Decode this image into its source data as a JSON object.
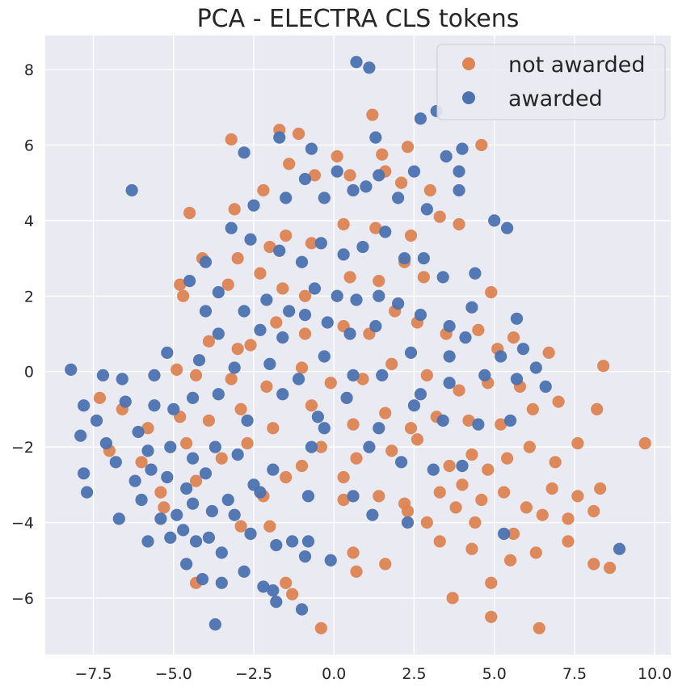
{
  "chart_data": {
    "type": "scatter",
    "title": "PCA - ELECTRA CLS tokens",
    "xlabel": "",
    "ylabel": "",
    "xlim": [
      -9.0,
      10.5
    ],
    "ylim": [
      -7.5,
      8.9
    ],
    "x_ticks": [
      -7.5,
      -5.0,
      -2.5,
      0.0,
      2.5,
      5.0,
      7.5,
      10.0
    ],
    "x_tick_labels": [
      "−7.5",
      "−5.0",
      "−2.5",
      "0.0",
      "2.5",
      "5.0",
      "7.5",
      "10.0"
    ],
    "y_ticks": [
      -6,
      -4,
      -2,
      0,
      2,
      4,
      6,
      8
    ],
    "y_tick_labels": [
      "−6",
      "−4",
      "−2",
      "0",
      "2",
      "4",
      "6",
      "8"
    ],
    "grid": true,
    "legend_position": "top-right",
    "series": [
      {
        "name": "not awarded",
        "color": "#dd8452",
        "points": [
          [
            -3.2,
            6.15
          ],
          [
            -1.7,
            6.4
          ],
          [
            -1.1,
            6.3
          ],
          [
            0.1,
            5.7
          ],
          [
            1.2,
            6.8
          ],
          [
            1.5,
            5.75
          ],
          [
            2.3,
            5.95
          ],
          [
            4.6,
            6.0
          ],
          [
            -4.5,
            4.2
          ],
          [
            -3.1,
            4.3
          ],
          [
            -2.2,
            4.8
          ],
          [
            -1.4,
            5.5
          ],
          [
            -0.6,
            5.2
          ],
          [
            0.5,
            5.2
          ],
          [
            1.6,
            5.3
          ],
          [
            2.1,
            5.0
          ],
          [
            3.0,
            4.8
          ],
          [
            -4.1,
            3.0
          ],
          [
            -3.0,
            3.0
          ],
          [
            -2.0,
            3.3
          ],
          [
            -1.5,
            3.6
          ],
          [
            -0.7,
            3.4
          ],
          [
            0.3,
            3.9
          ],
          [
            1.3,
            3.8
          ],
          [
            2.4,
            3.6
          ],
          [
            3.3,
            4.1
          ],
          [
            3.9,
            3.9
          ],
          [
            -4.8,
            2.3
          ],
          [
            -4.7,
            2.0
          ],
          [
            -3.3,
            2.3
          ],
          [
            -2.3,
            2.6
          ],
          [
            -1.6,
            2.2
          ],
          [
            -0.9,
            2.0
          ],
          [
            0.5,
            2.5
          ],
          [
            1.4,
            2.4
          ],
          [
            2.2,
            2.9
          ],
          [
            2.8,
            2.5
          ],
          [
            4.9,
            2.1
          ],
          [
            -3.9,
            0.8
          ],
          [
            -3.0,
            0.6
          ],
          [
            -2.6,
            0.7
          ],
          [
            -1.8,
            1.3
          ],
          [
            -0.9,
            1.0
          ],
          [
            0.3,
            1.2
          ],
          [
            1.1,
            1.0
          ],
          [
            1.9,
            1.6
          ],
          [
            2.6,
            1.3
          ],
          [
            3.5,
            1.0
          ],
          [
            4.5,
            1.1
          ],
          [
            5.1,
            0.6
          ],
          [
            5.6,
            0.9
          ],
          [
            -4.9,
            0.05
          ],
          [
            -4.3,
            -0.1
          ],
          [
            -3.2,
            -0.2
          ],
          [
            -2.1,
            -0.4
          ],
          [
            -1.0,
            0.1
          ],
          [
            -0.1,
            -0.3
          ],
          [
            0.9,
            -0.2
          ],
          [
            1.8,
            0.2
          ],
          [
            2.9,
            -0.1
          ],
          [
            3.9,
            -0.5
          ],
          [
            4.8,
            -0.3
          ],
          [
            5.8,
            -0.4
          ],
          [
            6.7,
            0.5
          ],
          [
            8.4,
            0.15
          ],
          [
            -7.3,
            -0.7
          ],
          [
            -6.6,
            -1.0
          ],
          [
            -5.8,
            -1.5
          ],
          [
            -4.8,
            -1.2
          ],
          [
            -3.9,
            -1.3
          ],
          [
            -2.9,
            -1.0
          ],
          [
            -1.9,
            -1.5
          ],
          [
            -0.7,
            -0.9
          ],
          [
            0.6,
            -1.4
          ],
          [
            1.6,
            -1.1
          ],
          [
            2.4,
            -1.5
          ],
          [
            3.2,
            -1.2
          ],
          [
            4.2,
            -1.3
          ],
          [
            5.2,
            -1.4
          ],
          [
            6.2,
            -1.0
          ],
          [
            7.0,
            -0.8
          ],
          [
            8.2,
            -1.0
          ],
          [
            -7.0,
            -2.1
          ],
          [
            -6.0,
            -2.4
          ],
          [
            -4.6,
            -1.9
          ],
          [
            -3.5,
            -2.3
          ],
          [
            -2.7,
            -1.9
          ],
          [
            -1.5,
            -2.8
          ],
          [
            -0.4,
            -2.0
          ],
          [
            0.7,
            -2.3
          ],
          [
            1.8,
            -2.1
          ],
          [
            2.6,
            -1.8
          ],
          [
            3.6,
            -2.5
          ],
          [
            4.3,
            -2.2
          ],
          [
            4.8,
            -2.6
          ],
          [
            5.4,
            -2.3
          ],
          [
            6.1,
            -2.0
          ],
          [
            6.9,
            -2.4
          ],
          [
            7.6,
            -1.9
          ],
          [
            9.7,
            -1.9
          ],
          [
            -5.4,
            -3.2
          ],
          [
            -4.3,
            -2.9
          ],
          [
            -2.2,
            -3.3
          ],
          [
            -1.0,
            -2.5
          ],
          [
            0.3,
            -2.8
          ],
          [
            1.4,
            -3.3
          ],
          [
            2.2,
            -3.5
          ],
          [
            3.3,
            -3.2
          ],
          [
            4.0,
            -3.0
          ],
          [
            4.6,
            -3.4
          ],
          [
            5.3,
            -3.2
          ],
          [
            6.0,
            -3.6
          ],
          [
            6.8,
            -3.1
          ],
          [
            7.6,
            -3.3
          ],
          [
            8.3,
            -3.1
          ],
          [
            -5.3,
            -3.6
          ],
          [
            -2.9,
            -4.1
          ],
          [
            -2.0,
            -4.1
          ],
          [
            0.3,
            -3.4
          ],
          [
            2.3,
            -3.7
          ],
          [
            2.9,
            -4.0
          ],
          [
            3.8,
            -3.6
          ],
          [
            4.4,
            -4.0
          ],
          [
            5.6,
            -4.3
          ],
          [
            6.5,
            -3.8
          ],
          [
            7.3,
            -3.9
          ],
          [
            8.1,
            -3.7
          ],
          [
            0.6,
            -4.8
          ],
          [
            1.6,
            -5.1
          ],
          [
            3.3,
            -4.5
          ],
          [
            4.3,
            -4.7
          ],
          [
            5.5,
            -5.0
          ],
          [
            6.3,
            -4.8
          ],
          [
            7.3,
            -4.5
          ],
          [
            8.1,
            -5.1
          ],
          [
            8.6,
            -5.2
          ],
          [
            -4.3,
            -5.6
          ],
          [
            -1.5,
            -5.6
          ],
          [
            0.7,
            -5.3
          ],
          [
            3.7,
            -6.0
          ],
          [
            4.9,
            -5.6
          ],
          [
            -1.3,
            -5.9
          ],
          [
            -0.4,
            -6.8
          ],
          [
            4.9,
            -6.5
          ],
          [
            6.4,
            -6.8
          ]
        ]
      },
      {
        "name": "awarded",
        "color": "#4c72b0",
        "points": [
          [
            0.7,
            8.2
          ],
          [
            1.1,
            8.05
          ],
          [
            3.2,
            6.9
          ],
          [
            2.7,
            6.7
          ],
          [
            1.3,
            6.2
          ],
          [
            -2.8,
            5.8
          ],
          [
            -1.7,
            6.2
          ],
          [
            -0.7,
            5.9
          ],
          [
            0.1,
            5.3
          ],
          [
            1.4,
            5.2
          ],
          [
            2.5,
            5.3
          ],
          [
            3.5,
            5.7
          ],
          [
            4.0,
            5.9
          ],
          [
            3.9,
            5.3
          ],
          [
            -6.3,
            4.8
          ],
          [
            -2.5,
            4.4
          ],
          [
            -1.5,
            4.6
          ],
          [
            -0.9,
            5.1
          ],
          [
            -0.3,
            4.6
          ],
          [
            0.6,
            4.8
          ],
          [
            1.0,
            4.9
          ],
          [
            2.0,
            4.6
          ],
          [
            2.9,
            4.3
          ],
          [
            3.9,
            4.8
          ],
          [
            5.0,
            4.0
          ],
          [
            5.4,
            3.8
          ],
          [
            -4.0,
            2.9
          ],
          [
            -3.2,
            3.8
          ],
          [
            -2.6,
            3.5
          ],
          [
            -1.7,
            3.2
          ],
          [
            -1.0,
            2.9
          ],
          [
            -0.4,
            3.4
          ],
          [
            0.3,
            3.1
          ],
          [
            0.9,
            3.3
          ],
          [
            1.6,
            3.7
          ],
          [
            2.2,
            3.0
          ],
          [
            2.8,
            3.0
          ],
          [
            3.4,
            2.5
          ],
          [
            4.4,
            2.6
          ],
          [
            -4.5,
            2.4
          ],
          [
            -3.6,
            2.1
          ],
          [
            -2.8,
            1.6
          ],
          [
            -2.1,
            1.9
          ],
          [
            -1.4,
            1.6
          ],
          [
            -0.6,
            2.2
          ],
          [
            0.1,
            2.0
          ],
          [
            0.7,
            1.9
          ],
          [
            1.4,
            2.0
          ],
          [
            2.0,
            1.8
          ],
          [
            2.7,
            1.5
          ],
          [
            3.6,
            1.2
          ],
          [
            4.3,
            1.7
          ],
          [
            5.7,
            1.4
          ],
          [
            -4.0,
            1.6
          ],
          [
            -3.6,
            1.0
          ],
          [
            -2.3,
            1.1
          ],
          [
            -1.6,
            0.9
          ],
          [
            -0.9,
            1.5
          ],
          [
            -0.2,
            1.3
          ],
          [
            0.5,
            1.0
          ],
          [
            1.3,
            1.2
          ],
          [
            2.4,
            0.5
          ],
          [
            3.6,
            0.4
          ],
          [
            4.1,
            0.9
          ],
          [
            5.2,
            0.4
          ],
          [
            5.9,
            0.6
          ],
          [
            6.3,
            0.1
          ],
          [
            -8.2,
            0.05
          ],
          [
            -7.2,
            -0.1
          ],
          [
            -6.6,
            -0.2
          ],
          [
            -5.6,
            -0.1
          ],
          [
            -5.2,
            0.5
          ],
          [
            -4.2,
            0.3
          ],
          [
            -3.1,
            0.1
          ],
          [
            -2.0,
            0.2
          ],
          [
            -1.1,
            -0.2
          ],
          [
            -0.3,
            0.4
          ],
          [
            0.6,
            -0.1
          ],
          [
            1.5,
            -0.1
          ],
          [
            2.7,
            -0.6
          ],
          [
            3.6,
            -0.3
          ],
          [
            4.7,
            -0.1
          ],
          [
            5.7,
            -0.2
          ],
          [
            6.6,
            -0.4
          ],
          [
            -7.8,
            -0.9
          ],
          [
            -7.4,
            -1.3
          ],
          [
            -6.5,
            -0.8
          ],
          [
            -5.6,
            -0.9
          ],
          [
            -5.0,
            -1.0
          ],
          [
            -4.4,
            -0.7
          ],
          [
            -3.6,
            -0.6
          ],
          [
            -2.7,
            -1.3
          ],
          [
            -1.6,
            -0.6
          ],
          [
            -0.5,
            -1.2
          ],
          [
            0.4,
            -0.7
          ],
          [
            1.4,
            -1.5
          ],
          [
            2.5,
            -0.9
          ],
          [
            3.4,
            -1.3
          ],
          [
            4.5,
            -1.4
          ],
          [
            5.5,
            -1.3
          ],
          [
            -7.9,
            -1.7
          ],
          [
            -7.1,
            -1.9
          ],
          [
            -6.1,
            -1.6
          ],
          [
            -5.8,
            -2.1
          ],
          [
            -5.1,
            -2.0
          ],
          [
            -4.4,
            -2.3
          ],
          [
            -3.7,
            -2.0
          ],
          [
            -3.0,
            -2.2
          ],
          [
            -0.7,
            -2.0
          ],
          [
            -0.3,
            -1.5
          ],
          [
            1.1,
            -2.0
          ],
          [
            2.1,
            -2.4
          ],
          [
            3.1,
            -2.6
          ],
          [
            4.0,
            -2.5
          ],
          [
            -7.8,
            -2.7
          ],
          [
            -6.8,
            -2.4
          ],
          [
            -6.2,
            -2.9
          ],
          [
            -5.7,
            -2.6
          ],
          [
            -5.2,
            -2.8
          ],
          [
            -4.6,
            -3.1
          ],
          [
            -4.0,
            -2.7
          ],
          [
            -3.3,
            -3.4
          ],
          [
            -2.5,
            -3.0
          ],
          [
            -1.9,
            -2.6
          ],
          [
            -0.8,
            -3.3
          ],
          [
            0.6,
            -3.3
          ],
          [
            -7.7,
            -3.2
          ],
          [
            -6.7,
            -3.9
          ],
          [
            -6.0,
            -3.4
          ],
          [
            -5.4,
            -3.9
          ],
          [
            -4.9,
            -3.8
          ],
          [
            -4.4,
            -3.5
          ],
          [
            -3.8,
            -3.7
          ],
          [
            -3.1,
            -3.8
          ],
          [
            -2.3,
            -3.2
          ],
          [
            1.2,
            -3.8
          ],
          [
            2.3,
            -4.0
          ],
          [
            5.3,
            -4.3
          ],
          [
            -5.8,
            -4.5
          ],
          [
            -5.1,
            -4.4
          ],
          [
            -4.7,
            -4.2
          ],
          [
            -4.3,
            -4.5
          ],
          [
            -3.9,
            -4.4
          ],
          [
            -3.5,
            -4.8
          ],
          [
            -2.6,
            -4.3
          ],
          [
            -1.8,
            -4.6
          ],
          [
            -1.3,
            -4.5
          ],
          [
            -0.9,
            -4.9
          ],
          [
            -0.1,
            -5.0
          ],
          [
            -0.8,
            -4.5
          ],
          [
            8.9,
            -4.7
          ],
          [
            -4.6,
            -5.1
          ],
          [
            -4.1,
            -5.5
          ],
          [
            -3.5,
            -5.6
          ],
          [
            -2.8,
            -5.3
          ],
          [
            -2.2,
            -5.7
          ],
          [
            -1.9,
            -5.8
          ],
          [
            -1.0,
            -6.3
          ],
          [
            -1.8,
            -6.1
          ],
          [
            -3.7,
            -6.7
          ]
        ]
      }
    ]
  }
}
